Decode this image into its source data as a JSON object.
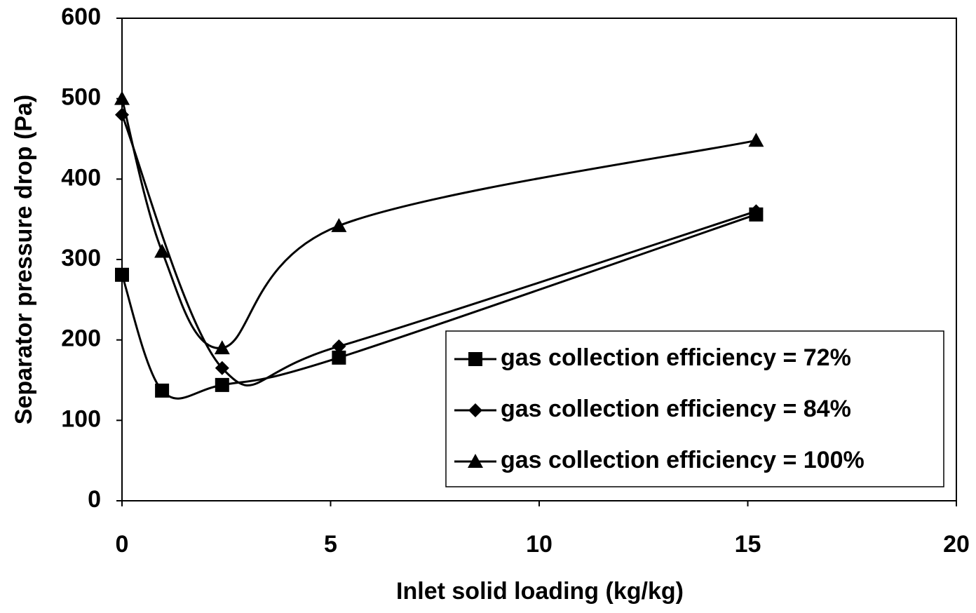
{
  "chart_data": {
    "type": "line",
    "smooth": true,
    "xlabel": "Inlet solid loading (kg/kg)",
    "ylabel": "Separator pressure drop (Pa)",
    "xlim": [
      0,
      20
    ],
    "ylim": [
      0,
      600
    ],
    "xticks": [
      0,
      5,
      10,
      15,
      20
    ],
    "yticks": [
      0,
      100,
      200,
      300,
      400,
      500,
      600
    ],
    "grid": false,
    "legend": "lower right",
    "series": [
      {
        "name": "gas collection efficiency = 72%",
        "color": "#000000",
        "marker": "square",
        "x": [
          0,
          0.96,
          2.4,
          5.2,
          15.2
        ],
        "values": [
          281,
          137,
          144,
          178,
          356
        ]
      },
      {
        "name": "gas collection efficiency = 84%",
        "color": "#000000",
        "marker": "diamond",
        "x": [
          0,
          2.4,
          5.2,
          15.2
        ],
        "values": [
          480,
          165,
          192,
          360
        ]
      },
      {
        "name": "gas collection efficiency = 100%",
        "color": "#000000",
        "marker": "triangle",
        "x": [
          0,
          0.96,
          2.4,
          5.2,
          15.2
        ],
        "values": [
          500,
          310,
          190,
          342,
          448
        ]
      }
    ]
  }
}
